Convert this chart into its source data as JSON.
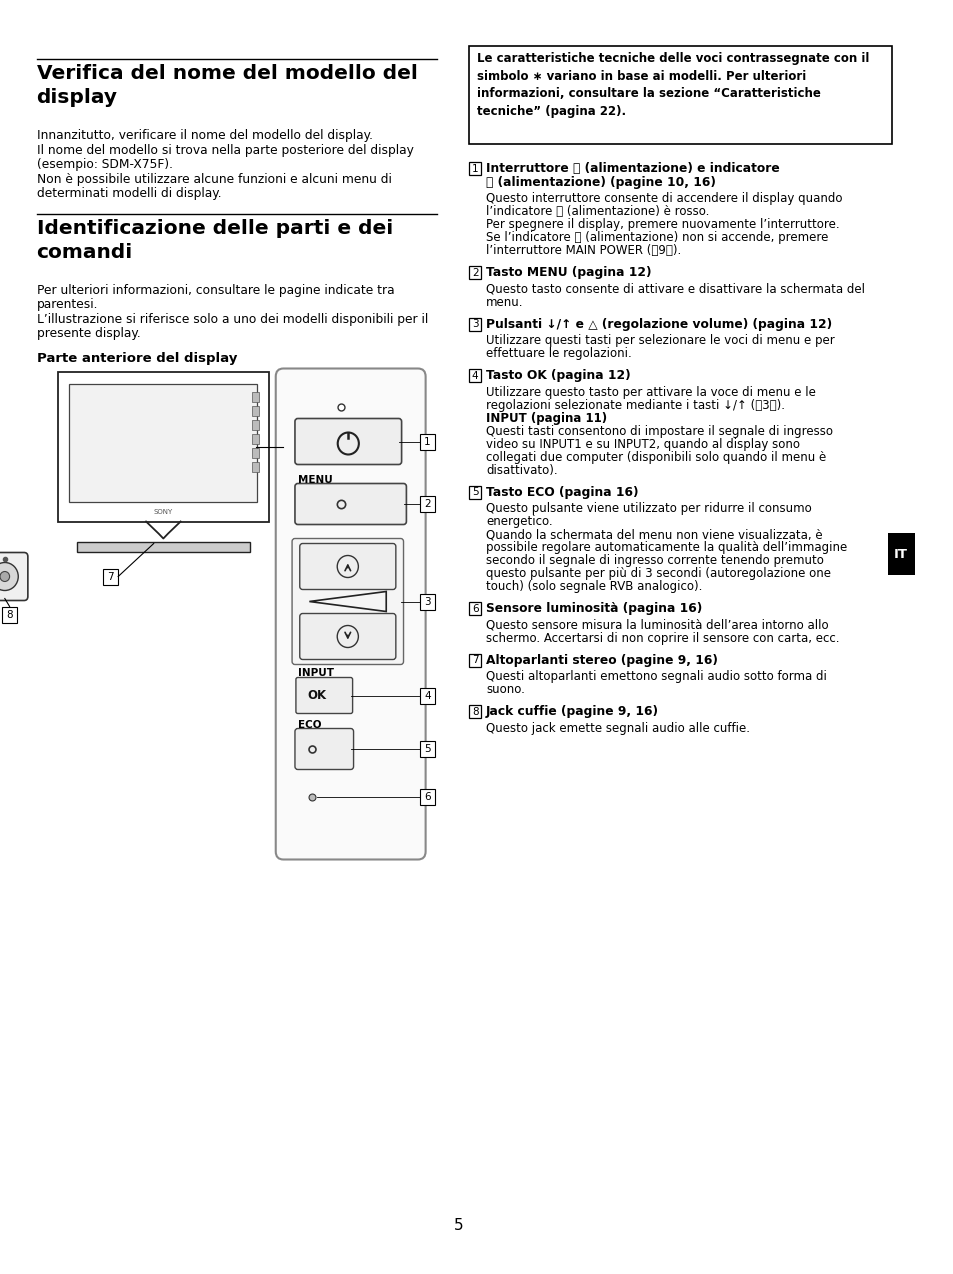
{
  "bg_color": "#ffffff",
  "title1_line1": "Verifica del nome del modello del",
  "title1_line2": "display",
  "title2_line1": "Identificazione delle parti e dei",
  "title2_line2": "comandi",
  "section1_body": [
    "Innanzitutto, verificare il nome del modello del display.",
    "Il nome del modello si trova nella parte posteriore del display",
    "(esempio: SDM-X75F).",
    "Non è possibile utilizzare alcune funzioni e alcuni menu di",
    "determinati modelli di display."
  ],
  "section2_body": [
    "Per ulteriori informazioni, consultare le pagine indicate tra",
    "parentesi.",
    "L’illustrazione si riferisce solo a uno dei modelli disponibili per il",
    "presente display."
  ],
  "subheading": "Parte anteriore del display",
  "notice_box_text": "Le caratteristiche tecniche delle voci contrassegnate con il\nsimbolo ∗ variano in base ai modelli. Per ulteriori\ninformazioni, consultare la sezione “Caratteristiche\ntecniche” (pagina 22).",
  "items": [
    {
      "num": "1",
      "title_lines": [
        "Interruttore ⏽ (alimentazione) e indicatore",
        "⏽ (alimentazione) (pagine 10, 16)"
      ],
      "body_lines": [
        "Questo interruttore consente di accendere il display quando",
        "l’indicatore ⏽ (alimentazione) è rosso.",
        "Per spegnere il display, premere nuovamente l’interruttore.",
        "Se l’indicatore ⏽ (alimentazione) non si accende, premere",
        "l’interruttore MAIN POWER (\t9\t)."
      ]
    },
    {
      "num": "2",
      "title_lines": [
        "Tasto MENU (pagina 12)"
      ],
      "body_lines": [
        "Questo tasto consente di attivare e disattivare la schermata del",
        "menu."
      ]
    },
    {
      "num": "3",
      "title_lines": [
        "Pulsanti ↓/↑ e △ (regolazione volume) (pagina 12)"
      ],
      "body_lines": [
        "Utilizzare questi tasti per selezionare le voci di menu e per",
        "effettuare le regolazioni."
      ]
    },
    {
      "num": "4",
      "title_lines": [
        "Tasto OK (pagina 12)"
      ],
      "body_lines": [
        "Utilizzare questo tasto per attivare la voce di menu e le",
        "regolazioni selezionate mediante i tasti ↓/↑ (\t3\t).",
        "INPUT (pagina 11)",
        "Questi tasti consentono di impostare il segnale di ingresso",
        "video su INPUT1 e su INPUT2, quando al display sono",
        "collegati due computer (disponibili solo quando il menu è",
        "disattivato)."
      ]
    },
    {
      "num": "5",
      "title_lines": [
        "Tasto ECO (pagina 16)"
      ],
      "body_lines": [
        "Questo pulsante viene utilizzato per ridurre il consumo",
        "energetico.",
        "Quando la schermata del menu non viene visualizzata, è",
        "possibile regolare automaticamente la qualità dell’immagine",
        "secondo il segnale di ingresso corrente tenendo premuto",
        "questo pulsante per più di 3 secondi (autoregolazione one",
        "touch) (solo segnale RVB analogico)."
      ]
    },
    {
      "num": "6",
      "title_lines": [
        "Sensore luminosità (pagina 16)"
      ],
      "body_lines": [
        "Questo sensore misura la luminosità dell’area intorno allo",
        "schermo. Accertarsi di non coprire il sensore con carta, ecc."
      ]
    },
    {
      "num": "7",
      "title_lines": [
        "Altoparlanti stereo (pagine 9, 16)"
      ],
      "body_lines": [
        "Questi altoparlanti emettono segnali audio sotto forma di",
        "suono."
      ]
    },
    {
      "num": "8",
      "title_lines": [
        "Jack cuffie (pagine 9, 16)"
      ],
      "body_lines": [
        "Questo jack emette segnali audio alle cuffie."
      ]
    }
  ],
  "page_number": "5",
  "it_label": "IT"
}
